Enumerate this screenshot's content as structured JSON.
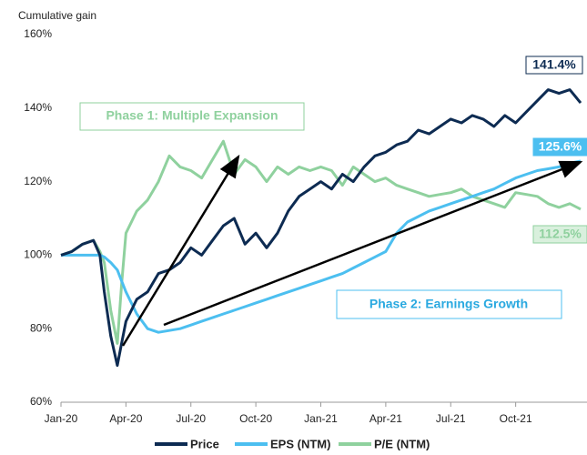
{
  "chart_data": {
    "type": "line",
    "ylabel": "Cumulative gain",
    "x": [
      0,
      0.5,
      1,
      1.5,
      1.8,
      2,
      2.3,
      2.6,
      2.8,
      3,
      3.5,
      4,
      4.5,
      5,
      5.5,
      6,
      6.5,
      7,
      7.5,
      8,
      8.5,
      9,
      9.5,
      10,
      10.5,
      11,
      11.5,
      12,
      12.5,
      13,
      13.5,
      14,
      14.5,
      15,
      15.5,
      16,
      16.5,
      17,
      17.5,
      18,
      18.5,
      19,
      19.5,
      20,
      20.5,
      21,
      21.5,
      22,
      22.5,
      23,
      23.5,
      24
    ],
    "xlim": [
      0,
      24
    ],
    "xticks": [
      {
        "value": 0,
        "label": "Jan-20"
      },
      {
        "value": 3,
        "label": "Apr-20"
      },
      {
        "value": 6,
        "label": "Jul-20"
      },
      {
        "value": 9,
        "label": "Oct-20"
      },
      {
        "value": 12,
        "label": "Jan-21"
      },
      {
        "value": 15,
        "label": "Apr-21"
      },
      {
        "value": 18,
        "label": "Jul-21"
      },
      {
        "value": 21,
        "label": "Oct-21"
      }
    ],
    "ylim": [
      60,
      160
    ],
    "yticks": [
      {
        "value": 60,
        "label": "60%"
      },
      {
        "value": 80,
        "label": "80%"
      },
      {
        "value": 100,
        "label": "100%"
      },
      {
        "value": 120,
        "label": "120%"
      },
      {
        "value": 140,
        "label": "140%"
      },
      {
        "value": 160,
        "label": "160%"
      }
    ],
    "grid": false,
    "legend": "bottom",
    "series": [
      {
        "name": "Price",
        "color": "#0d2b52",
        "last_label": "141.4%",
        "values": [
          100,
          101,
          103,
          104,
          100,
          90,
          78,
          70,
          76,
          82,
          88,
          90,
          95,
          96,
          98,
          102,
          100,
          104,
          108,
          110,
          103,
          106,
          102,
          106,
          112,
          116,
          118,
          120,
          118,
          122,
          120,
          124,
          127,
          128,
          130,
          131,
          134,
          133,
          135,
          137,
          136,
          138,
          137,
          135,
          138,
          136,
          139,
          142,
          145,
          144,
          145,
          141.4
        ]
      },
      {
        "name": "EPS (NTM)",
        "color": "#4cbff0",
        "last_label": "125.6%",
        "values": [
          100,
          100,
          100,
          100,
          100,
          99.5,
          98,
          96,
          93,
          90,
          84,
          80,
          79,
          79.5,
          80,
          81,
          82,
          83,
          84,
          85,
          86,
          87,
          88,
          89,
          90,
          91,
          92,
          93,
          94,
          95,
          96.5,
          98,
          99.5,
          101,
          106,
          109,
          110.5,
          112,
          113,
          114,
          115,
          116,
          117,
          118,
          119.5,
          121,
          122,
          123,
          123.5,
          124,
          125,
          125.6
        ]
      },
      {
        "name": "P/E (NTM)",
        "color": "#8fd19e",
        "last_label": "112.5%",
        "values": [
          100,
          101,
          103,
          104,
          101,
          98,
          85,
          76,
          92,
          106,
          112,
          115,
          120,
          127,
          124,
          123,
          121,
          126,
          131,
          122,
          126,
          124,
          120,
          124,
          122,
          124,
          123,
          124,
          123,
          119,
          124,
          122,
          120,
          121,
          119,
          118,
          117,
          116,
          116.5,
          117,
          118,
          116,
          115,
          114,
          113,
          117,
          116.5,
          116,
          114,
          113,
          114,
          112.5
        ]
      }
    ],
    "annotations": [
      "Phase 1: Multiple Expansion",
      "Phase 2: Earnings Growth"
    ]
  }
}
